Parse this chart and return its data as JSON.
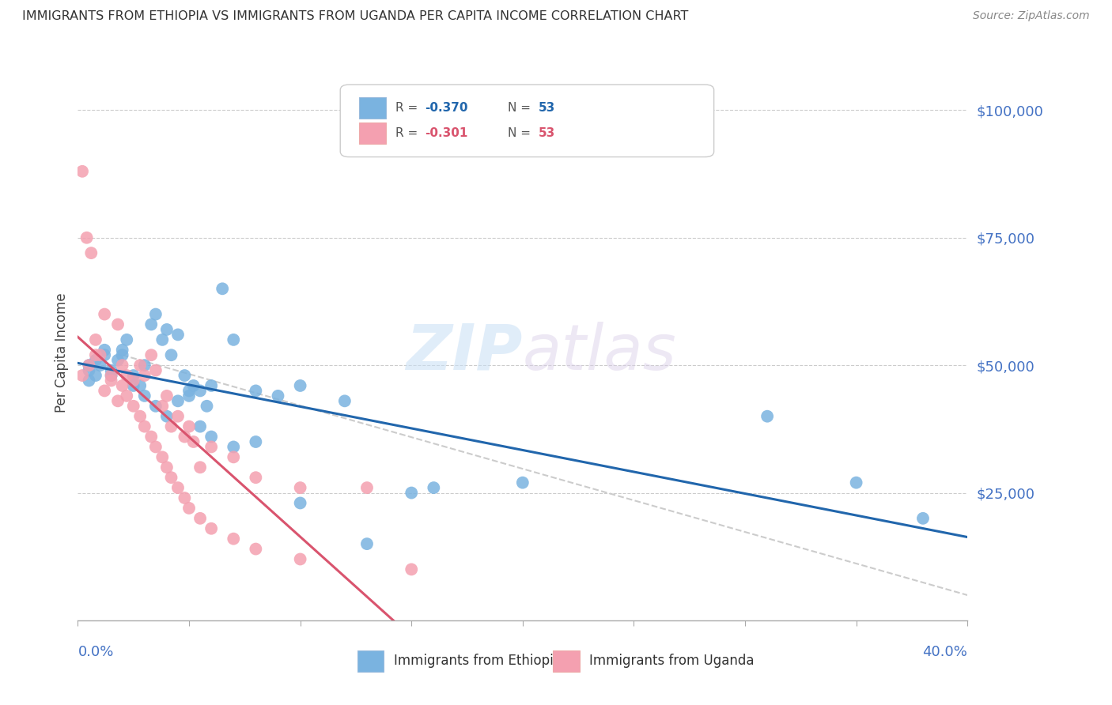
{
  "title": "IMMIGRANTS FROM ETHIOPIA VS IMMIGRANTS FROM UGANDA PER CAPITA INCOME CORRELATION CHART",
  "source": "Source: ZipAtlas.com",
  "ylabel": "Per Capita Income",
  "y_ticks": [
    0,
    25000,
    50000,
    75000,
    100000
  ],
  "y_tick_labels": [
    "",
    "$25,000",
    "$50,000",
    "$75,000",
    "$100,000"
  ],
  "xlim": [
    0.0,
    0.4
  ],
  "ylim": [
    0,
    105000
  ],
  "ethiopia_color": "#7ab3e0",
  "uganda_color": "#f4a0b0",
  "ethiopia_line_color": "#2166ac",
  "uganda_line_color": "#d9546e",
  "r_ethiopia": -0.37,
  "r_uganda": -0.301,
  "watermark_zip": "ZIP",
  "watermark_atlas": "atlas",
  "ethiopia_x": [
    0.005,
    0.008,
    0.012,
    0.015,
    0.018,
    0.02,
    0.022,
    0.025,
    0.028,
    0.03,
    0.033,
    0.035,
    0.038,
    0.04,
    0.042,
    0.045,
    0.048,
    0.05,
    0.052,
    0.055,
    0.058,
    0.06,
    0.065,
    0.07,
    0.08,
    0.09,
    0.1,
    0.12,
    0.15,
    0.2,
    0.005,
    0.01,
    0.015,
    0.02,
    0.025,
    0.03,
    0.035,
    0.04,
    0.045,
    0.05,
    0.055,
    0.06,
    0.07,
    0.08,
    0.1,
    0.13,
    0.16,
    0.005,
    0.008,
    0.012,
    0.35,
    0.38,
    0.31
  ],
  "ethiopia_y": [
    50000,
    48000,
    52000,
    49000,
    51000,
    53000,
    55000,
    48000,
    46000,
    50000,
    58000,
    60000,
    55000,
    57000,
    52000,
    56000,
    48000,
    44000,
    46000,
    45000,
    42000,
    46000,
    65000,
    55000,
    45000,
    44000,
    46000,
    43000,
    25000,
    27000,
    47000,
    50000,
    48000,
    52000,
    46000,
    44000,
    42000,
    40000,
    43000,
    45000,
    38000,
    36000,
    34000,
    35000,
    23000,
    15000,
    26000,
    49000,
    51000,
    53000,
    27000,
    20000,
    40000
  ],
  "uganda_x": [
    0.002,
    0.004,
    0.006,
    0.008,
    0.01,
    0.012,
    0.015,
    0.018,
    0.02,
    0.022,
    0.025,
    0.028,
    0.03,
    0.033,
    0.035,
    0.038,
    0.04,
    0.042,
    0.045,
    0.048,
    0.05,
    0.052,
    0.055,
    0.06,
    0.07,
    0.08,
    0.1,
    0.13,
    0.002,
    0.005,
    0.008,
    0.012,
    0.015,
    0.018,
    0.02,
    0.022,
    0.025,
    0.028,
    0.03,
    0.033,
    0.035,
    0.038,
    0.04,
    0.042,
    0.045,
    0.048,
    0.05,
    0.055,
    0.06,
    0.07,
    0.08,
    0.1,
    0.15
  ],
  "uganda_y": [
    88000,
    75000,
    72000,
    55000,
    52000,
    60000,
    48000,
    58000,
    50000,
    48000,
    47000,
    50000,
    48000,
    52000,
    49000,
    42000,
    44000,
    38000,
    40000,
    36000,
    38000,
    35000,
    30000,
    34000,
    32000,
    28000,
    26000,
    26000,
    48000,
    50000,
    52000,
    45000,
    47000,
    43000,
    46000,
    44000,
    42000,
    40000,
    38000,
    36000,
    34000,
    32000,
    30000,
    28000,
    26000,
    24000,
    22000,
    20000,
    18000,
    16000,
    14000,
    12000,
    10000
  ]
}
